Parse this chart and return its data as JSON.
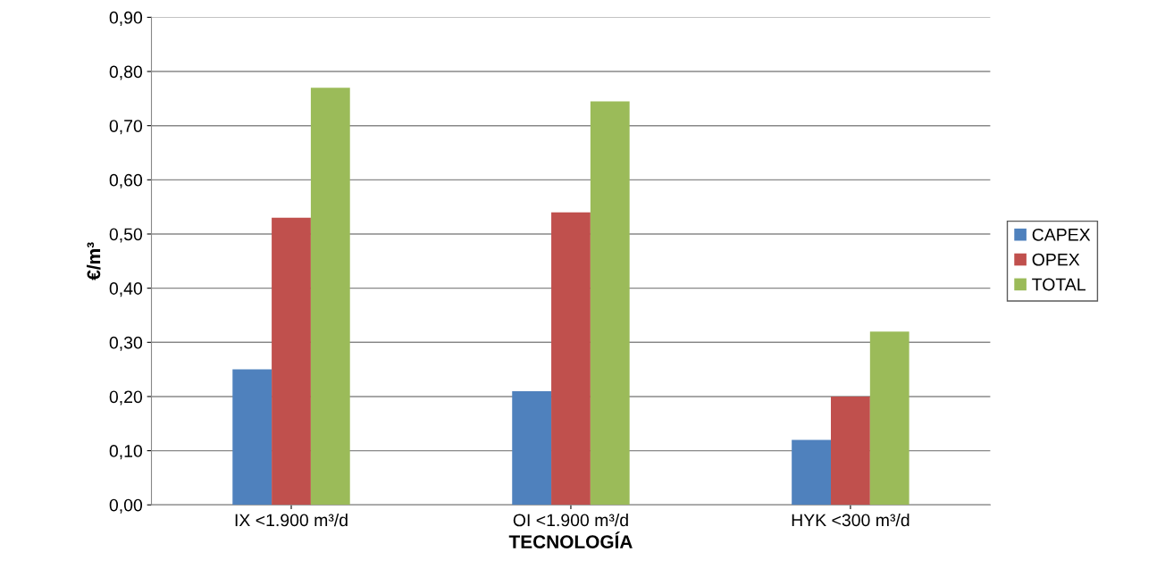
{
  "chart_data": {
    "type": "bar",
    "xlabel": "TECNOLOGÍA",
    "ylabel": "€/m³",
    "categories": [
      "IX <1.900 m³/d",
      "OI <1.900 m³/d",
      "HYK <300 m³/d"
    ],
    "series": [
      {
        "name": "CAPEX",
        "color": "#4f81bd",
        "values": [
          0.25,
          0.21,
          0.12
        ]
      },
      {
        "name": "OPEX",
        "color": "#c0504d",
        "values": [
          0.53,
          0.54,
          0.2
        ]
      },
      {
        "name": "TOTAL",
        "color": "#9bbb59",
        "values": [
          0.77,
          0.745,
          0.32
        ]
      }
    ],
    "ylim": [
      0,
      0.9
    ],
    "yticks": [
      {
        "value": 0,
        "label": "0,00"
      },
      {
        "value": 0.1,
        "label": "0,10"
      },
      {
        "value": 0.2,
        "label": "0,20"
      },
      {
        "value": 0.3,
        "label": "0,30"
      },
      {
        "value": 0.4,
        "label": "0,40"
      },
      {
        "value": 0.5,
        "label": "0,50"
      },
      {
        "value": 0.6,
        "label": "0,60"
      },
      {
        "value": 0.7,
        "label": "0,70"
      },
      {
        "value": 0.8,
        "label": "0,80"
      },
      {
        "value": 0.9,
        "label": "0,90"
      }
    ],
    "grid": "y",
    "legend": "right"
  }
}
